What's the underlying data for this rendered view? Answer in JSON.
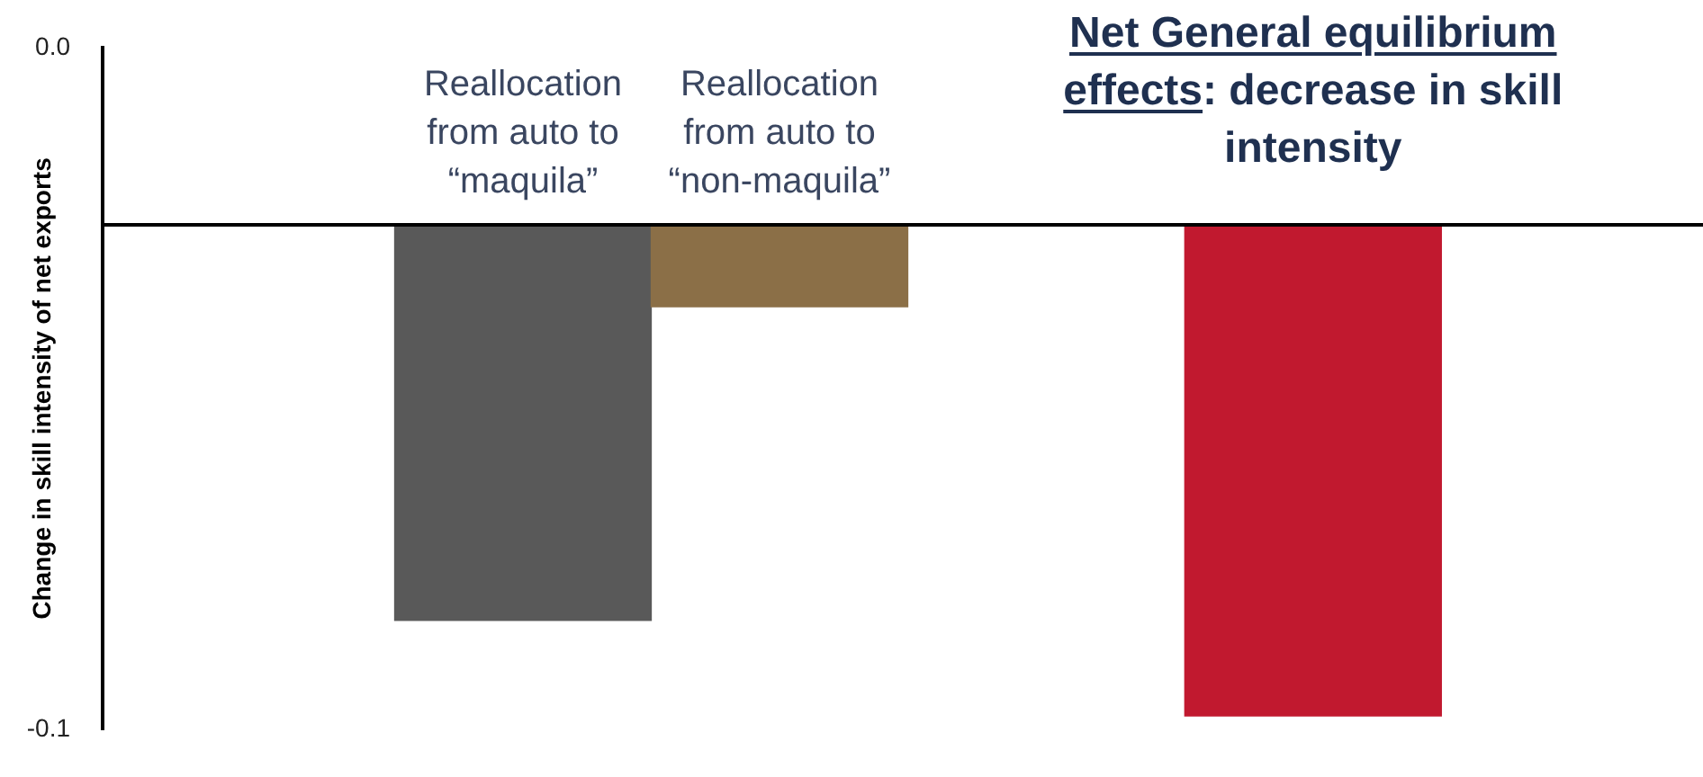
{
  "chart_data": {
    "type": "bar",
    "ylabel": "Change in skill intensity of net exports",
    "categories": [
      "Reallocation from auto to “maquila”",
      "Reallocation from auto to “non-maquila”",
      "Net General equilibrium effects: decrease in skill intensity"
    ],
    "values": [
      -0.058,
      -0.012,
      -0.072
    ],
    "base": [
      -0.026,
      -0.026,
      -0.026
    ],
    "colors": [
      "#595959",
      "#8b6f47",
      "#c1192f"
    ],
    "ylim": [
      -0.1,
      0.0
    ],
    "yticks": [
      {
        "value": 0,
        "label": "0.0"
      },
      -0.1
    ],
    "ref_lines": [
      {
        "axis": "y",
        "value": -0.026,
        "color": "#000000"
      }
    ],
    "grid": false,
    "legend": false
  }
}
